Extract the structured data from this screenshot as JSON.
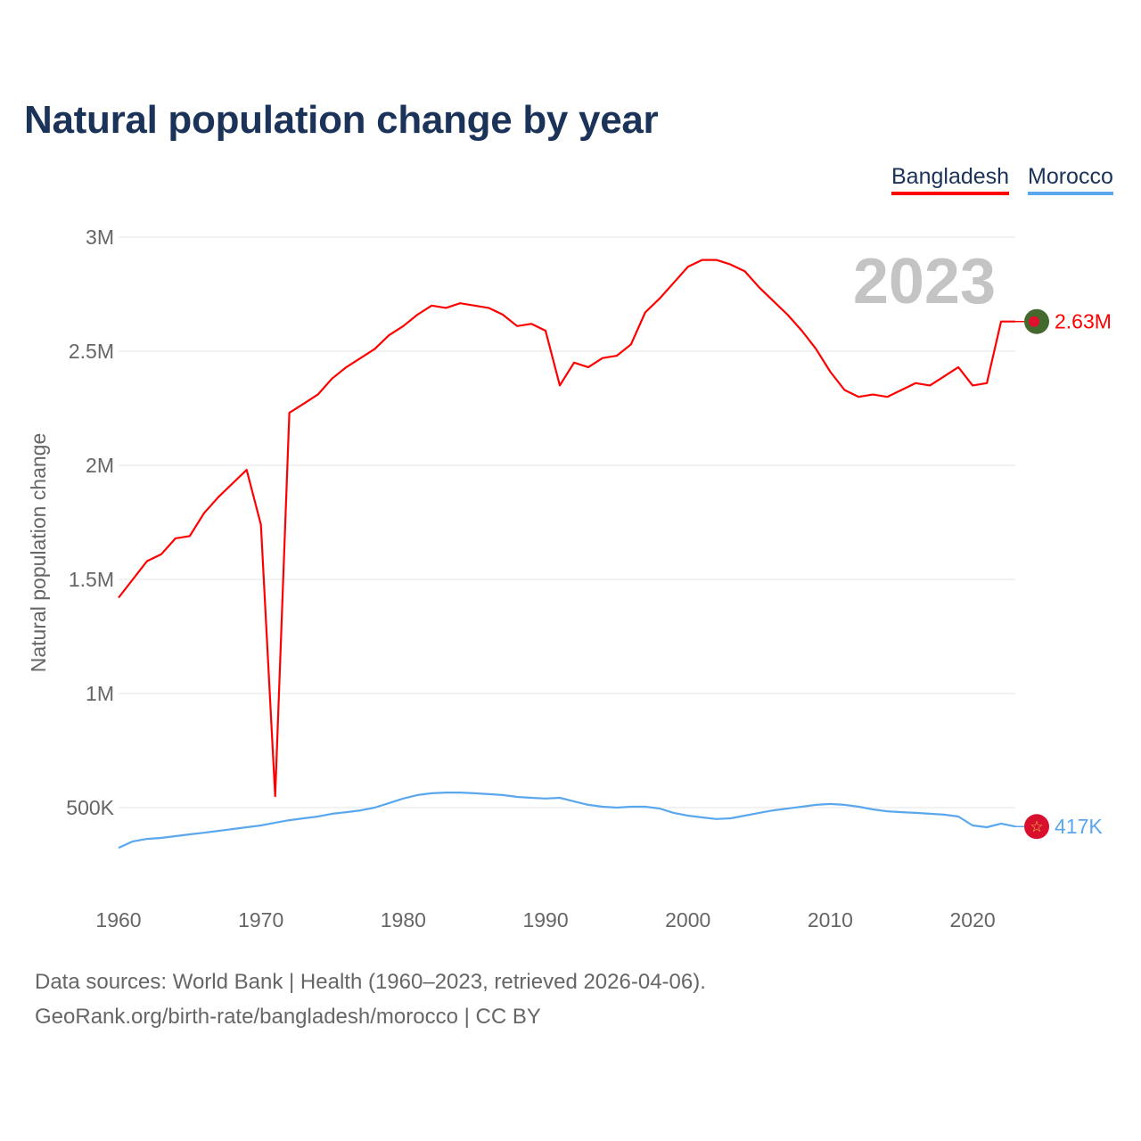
{
  "title": "Natural population change by year",
  "footer": {
    "line1": "Data sources: World Bank | Health (1960–2023, retrieved 2026-04-06).",
    "line2": "GeoRank.org/birth-rate/bangladesh/morocco | CC BY"
  },
  "chart_data": {
    "type": "line",
    "title": "Natural population change by year",
    "xlabel": "",
    "ylabel": "Natural population change",
    "xlim": [
      1960,
      2023
    ],
    "ylim": [
      0.2,
      3.0
    ],
    "y_unit": "millions",
    "year_watermark": "2023",
    "x_ticks": [
      1960,
      1970,
      1980,
      1990,
      2000,
      2010,
      2020
    ],
    "x_tick_labels": [
      "1960",
      "1970",
      "1980",
      "1990",
      "2000",
      "2010",
      "2020"
    ],
    "y_ticks": [
      0.5,
      1,
      1.5,
      2,
      2.5,
      3
    ],
    "y_tick_labels": [
      "500K",
      "1M",
      "1.5M",
      "2M",
      "2.5M",
      "3M"
    ],
    "grid": true,
    "legend_position": "top-right",
    "series": [
      {
        "name": "Bangladesh",
        "color": "#ff0000",
        "end_label": "2.63M",
        "flag": "bangladesh-flag",
        "values": [
          1.42,
          1.5,
          1.58,
          1.61,
          1.68,
          1.69,
          1.79,
          1.86,
          1.92,
          1.98,
          1.74,
          0.55,
          2.23,
          2.27,
          2.31,
          2.38,
          2.43,
          2.47,
          2.51,
          2.57,
          2.61,
          2.66,
          2.7,
          2.69,
          2.71,
          2.7,
          2.69,
          2.66,
          2.61,
          2.62,
          2.59,
          2.35,
          2.45,
          2.43,
          2.47,
          2.48,
          2.53,
          2.67,
          2.73,
          2.8,
          2.87,
          2.9,
          2.9,
          2.88,
          2.85,
          2.78,
          2.72,
          2.66,
          2.59,
          2.51,
          2.41,
          2.33,
          2.3,
          2.31,
          2.3,
          2.33,
          2.36,
          2.35,
          2.39,
          2.43,
          2.35,
          2.36,
          2.63,
          2.63
        ]
      },
      {
        "name": "Morocco",
        "color": "#5aa7ee",
        "end_label": "417K",
        "flag": "morocco-flag",
        "values": [
          0.324,
          0.352,
          0.363,
          0.367,
          0.375,
          0.383,
          0.39,
          0.398,
          0.406,
          0.414,
          0.422,
          0.434,
          0.445,
          0.453,
          0.461,
          0.473,
          0.48,
          0.488,
          0.5,
          0.52,
          0.54,
          0.555,
          0.563,
          0.566,
          0.566,
          0.563,
          0.559,
          0.555,
          0.547,
          0.543,
          0.54,
          0.543,
          0.527,
          0.512,
          0.504,
          0.5,
          0.504,
          0.504,
          0.496,
          0.477,
          0.465,
          0.457,
          0.45,
          0.453,
          0.465,
          0.477,
          0.488,
          0.496,
          0.504,
          0.512,
          0.516,
          0.512,
          0.504,
          0.492,
          0.484,
          0.48,
          0.477,
          0.473,
          0.469,
          0.461,
          0.422,
          0.414,
          0.43,
          0.417
        ]
      }
    ]
  }
}
